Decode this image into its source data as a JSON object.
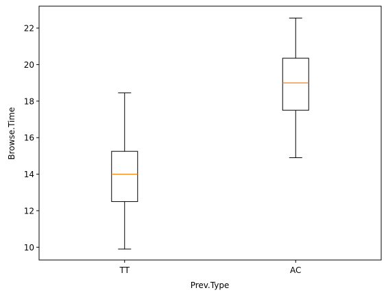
{
  "chart_data": {
    "type": "box",
    "title": "",
    "xlabel": "Prev.Type",
    "ylabel": "Browse.Time",
    "ylim": [
      9.3,
      23.2
    ],
    "yticks": [
      10,
      12,
      14,
      16,
      18,
      20,
      22
    ],
    "categories": [
      "TT",
      "AC"
    ],
    "boxes": [
      {
        "category": "TT",
        "whisker_low": 9.9,
        "q1": 12.5,
        "median": 14.0,
        "q3": 15.25,
        "whisker_high": 18.45
      },
      {
        "category": "AC",
        "whisker_low": 14.9,
        "q1": 17.5,
        "median": 19.0,
        "q3": 20.35,
        "whisker_high": 22.55
      }
    ],
    "grid": false,
    "colors": {
      "box": "#000000",
      "median": "#ff7f0e"
    }
  }
}
